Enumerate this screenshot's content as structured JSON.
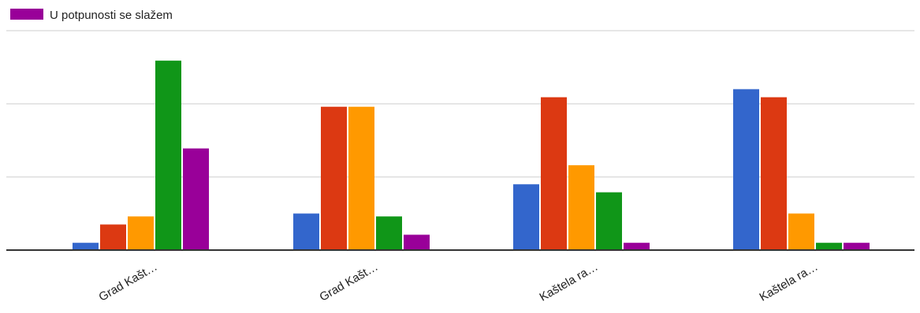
{
  "chart_data": {
    "type": "bar",
    "categories": [
      "Grad Kašt…",
      "Grad Kašt…",
      "Kaštela ra…",
      "Kaštela ra…"
    ],
    "series": [
      {
        "values": [
          1,
          5,
          9,
          22
        ],
        "color": "#3366cc"
      },
      {
        "values": [
          3.5,
          19.6,
          20.9,
          20.9
        ],
        "color": "#dc3912"
      },
      {
        "values": [
          4.6,
          19.6,
          11.6,
          5
        ],
        "color": "#ff9900"
      },
      {
        "values": [
          25.9,
          4.6,
          7.9,
          1
        ],
        "color": "#109618"
      },
      {
        "name": "U potpunosti se slažem",
        "values": [
          13.9,
          2.1,
          1,
          1
        ],
        "color": "#990099"
      }
    ],
    "ylim": [
      0,
      30
    ],
    "grid": true,
    "legend": "top-left",
    "xlabel": "",
    "ylabel": ""
  }
}
